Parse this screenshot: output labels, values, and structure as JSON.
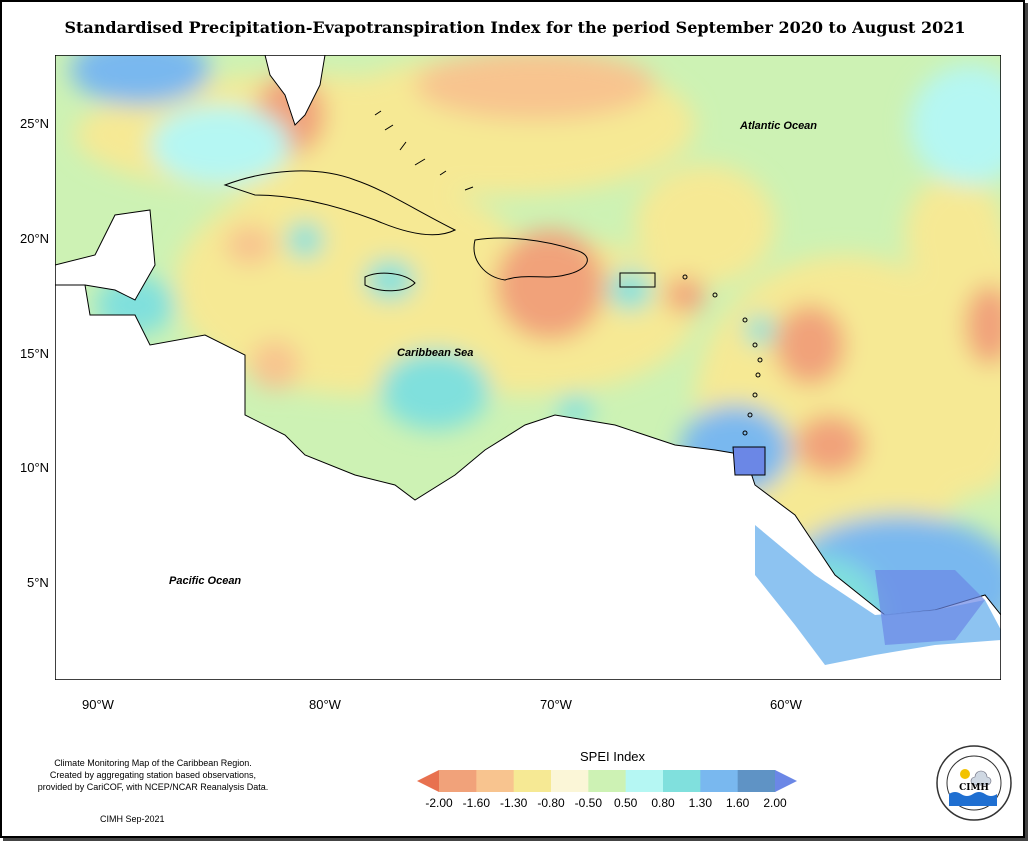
{
  "title": "Standardised Precipitation-Evapotranspiration Index for the period September 2020 to August 2021",
  "map": {
    "lat_ticks": [
      "25°N",
      "20°N",
      "15°N",
      "10°N",
      "5°N"
    ],
    "lon_ticks": [
      "90°W",
      "80°W",
      "70°W",
      "60°W"
    ],
    "labels": {
      "atlantic": "Atlantic Ocean",
      "caribbean": "Caribbean Sea",
      "pacific": "Pacific Ocean"
    }
  },
  "legend": {
    "title": "SPEI Index",
    "labels": [
      "-2.00",
      "-1.60",
      "-1.30",
      "-0.80",
      "-0.50",
      "0.50",
      "0.80",
      "1.30",
      "1.60",
      "2.00"
    ],
    "colors": [
      "#e8714f",
      "#f1a27a",
      "#f8c48f",
      "#f6e994",
      "#fbf6d7",
      "#cdf2b4",
      "#b5f7f3",
      "#80e0dd",
      "#79b8ef",
      "#5f93c5",
      "#6b87e6"
    ]
  },
  "notes": {
    "line1": "Climate Monitoring Map of the Caribbean Region.",
    "line2": "Created by aggregating station based observations,",
    "line3": "provided by CariCOF, with NCEP/NCAR Reanalysis Data.",
    "credit": "CIMH Sep-2021"
  },
  "logo": {
    "text": "CIMH",
    "ring_text": "Caribbean Institute for Meteorology and Hydrology"
  }
}
